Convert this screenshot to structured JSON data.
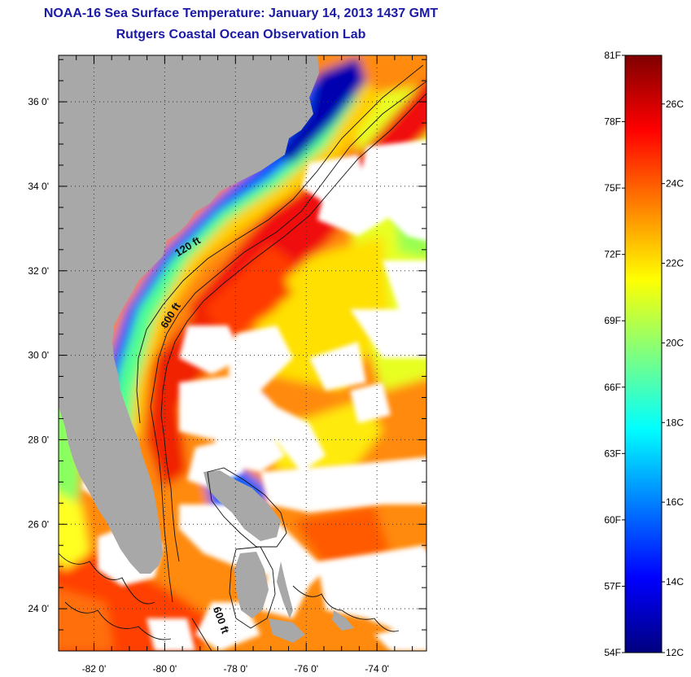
{
  "title": {
    "line1": "NOAA-16 Sea Surface Temperature:  January 14, 2013 1437 GMT",
    "line2": "Rutgers Coastal Ocean Observation Lab"
  },
  "map": {
    "lon_range": [
      -83.0,
      -72.6
    ],
    "lat_range": [
      23.0,
      37.1
    ],
    "lon_ticks": [
      {
        "value": -82,
        "label": "-82 0'"
      },
      {
        "value": -80,
        "label": "-80 0'"
      },
      {
        "value": -78,
        "label": "-78 0'"
      },
      {
        "value": -76,
        "label": "-76 0'"
      },
      {
        "value": -74,
        "label": "-74 0'"
      }
    ],
    "lat_ticks": [
      {
        "value": 36,
        "label": "36 0'"
      },
      {
        "value": 34,
        "label": "34 0'"
      },
      {
        "value": 32,
        "label": "32 0'"
      },
      {
        "value": 30,
        "label": "30 0'"
      },
      {
        "value": 28,
        "label": "28 0'"
      },
      {
        "value": 26,
        "label": "26 0'"
      },
      {
        "value": 24,
        "label": "24 0'"
      }
    ],
    "contour_labels": [
      {
        "text": "120 ft",
        "lon": -79.3,
        "lat": 32.5,
        "angle": -32
      },
      {
        "text": "600 ft",
        "lon": -79.75,
        "lat": 30.9,
        "angle": -58
      },
      {
        "text": "600 ft",
        "lon": -78.5,
        "lat": 23.7,
        "angle": 70
      }
    ],
    "colors": {
      "land": "#a8a8a8",
      "cloud": "#ffffff",
      "contour": "#111111",
      "grid": "#333333"
    }
  },
  "colorbar": {
    "f_labels": [
      {
        "value": 81,
        "label": "81F"
      },
      {
        "value": 78,
        "label": "78F"
      },
      {
        "value": 75,
        "label": "75F"
      },
      {
        "value": 72,
        "label": "72F"
      },
      {
        "value": 69,
        "label": "69F"
      },
      {
        "value": 66,
        "label": "66F"
      },
      {
        "value": 63,
        "label": "63F"
      },
      {
        "value": 60,
        "label": "60F"
      },
      {
        "value": 57,
        "label": "57F"
      },
      {
        "value": 54,
        "label": "54F"
      }
    ],
    "c_labels": [
      {
        "value": 26,
        "label": "26C"
      },
      {
        "value": 24,
        "label": "24C"
      },
      {
        "value": 22,
        "label": "22C"
      },
      {
        "value": 20,
        "label": "20C"
      },
      {
        "value": 18,
        "label": "18C"
      },
      {
        "value": 16,
        "label": "16C"
      },
      {
        "value": 14,
        "label": "14C"
      },
      {
        "value": 12,
        "label": "12C"
      }
    ],
    "range_f": [
      54,
      81
    ],
    "palette": [
      "#00007f",
      "#0000ff",
      "#007fff",
      "#00ffff",
      "#7fff7f",
      "#ffff00",
      "#ff7f00",
      "#ff0000",
      "#7f0000"
    ]
  }
}
